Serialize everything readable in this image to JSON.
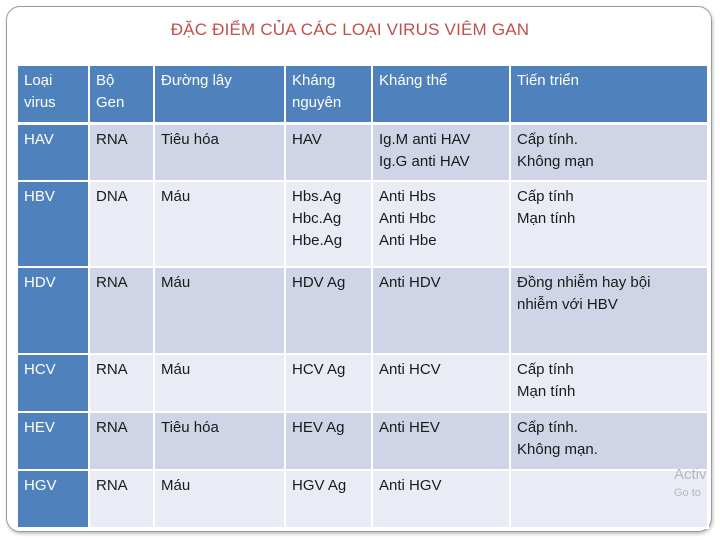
{
  "title": "ĐẶC ĐIỂM CỦA CÁC LOẠI VIRUS VIÊM GAN",
  "columns": [
    [
      "Loại",
      "virus"
    ],
    [
      "Bộ",
      "Gen"
    ],
    [
      "Đường lây"
    ],
    [
      "Kháng",
      "nguyên"
    ],
    [
      "Kháng thể"
    ],
    [
      "Tiến triển"
    ]
  ],
  "rows": [
    {
      "virus": "HAV",
      "gen": "RNA",
      "route": "Tiêu hóa",
      "antigen": [
        "HAV"
      ],
      "antibody": [
        "Ig.M anti HAV",
        "Ig.G anti HAV"
      ],
      "progress": [
        "Cấp tính.",
        "Không mạn"
      ]
    },
    {
      "virus": "HBV",
      "gen": "DNA",
      "route": "Máu",
      "antigen": [
        "Hbs.Ag",
        "Hbc.Ag",
        "Hbe.Ag"
      ],
      "antibody": [
        "Anti Hbs",
        "Anti Hbc",
        "Anti Hbe"
      ],
      "progress": [
        "Cấp tính",
        "Mạn tính"
      ]
    },
    {
      "virus": "HDV",
      "gen": "RNA",
      "route": "Máu",
      "antigen": [
        "HDV Ag"
      ],
      "antibody": [
        "Anti HDV"
      ],
      "progress": [
        "Đồng nhiễm hay bội",
        "nhiễm với HBV"
      ]
    },
    {
      "virus": "HCV",
      "gen": "RNA",
      "route": "Máu",
      "antigen": [
        "HCV Ag"
      ],
      "antibody": [
        "Anti HCV"
      ],
      "progress": [
        "Cấp tính",
        "Mạn tính"
      ]
    },
    {
      "virus": "HEV",
      "gen": "RNA",
      "route": "Tiêu hóa",
      "antigen": [
        "HEV Ag"
      ],
      "antibody": [
        "Anti HEV"
      ],
      "progress": [
        "Cấp tính.",
        "Không mạn."
      ]
    },
    {
      "virus": "HGV",
      "gen": "RNA",
      "route": "Máu",
      "antigen": [
        "HGV Ag"
      ],
      "antibody": [
        "Anti HGV"
      ],
      "progress": []
    }
  ],
  "watermark": {
    "line1": "Activ",
    "line2": "Go to"
  },
  "colors": {
    "header": "#4f81bd",
    "row_dark": "#cfd5e6",
    "row_light": "#e9ecf4",
    "title": "#c0504d"
  }
}
